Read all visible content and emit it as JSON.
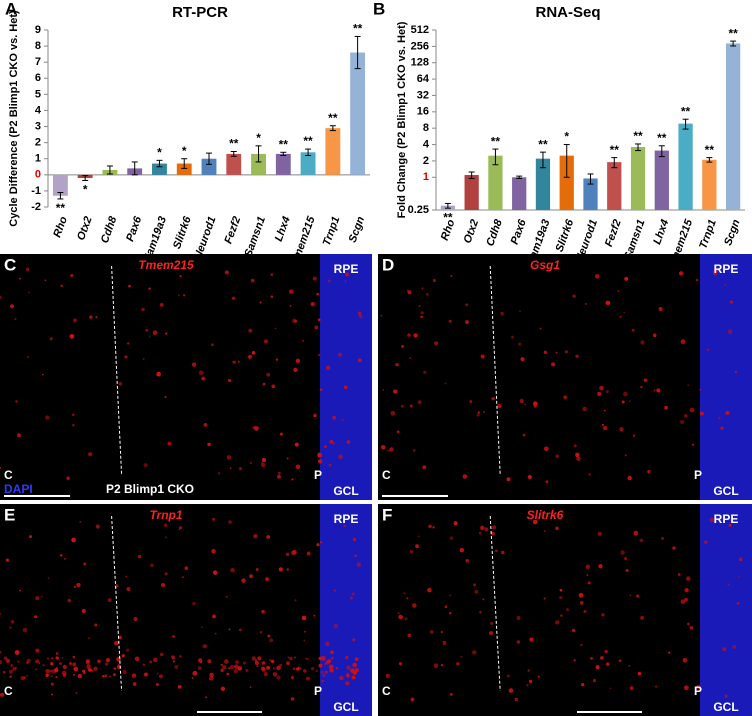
{
  "chart_data": [
    {
      "type": "bar",
      "panel": "A",
      "title": "RT-PCR",
      "ylabel": "Cycle Difference (P2 Blimp1 CKO vs. Het)",
      "categories": [
        "Rho",
        "Otx2",
        "Cdh8",
        "Pax6",
        "Fam19a3",
        "Slitrk6",
        "Neurod1",
        "Fezf2",
        "Samsn1",
        "Lhx4",
        "Tmem215",
        "Trnp1",
        "Scgn"
      ],
      "values": [
        -1.3,
        -0.2,
        0.3,
        0.4,
        0.7,
        0.7,
        1.0,
        1.3,
        1.3,
        1.3,
        1.4,
        2.9,
        7.6
      ],
      "errors": [
        0.2,
        0.15,
        0.25,
        0.4,
        0.2,
        0.3,
        0.35,
        0.15,
        0.5,
        0.1,
        0.2,
        0.15,
        1.0
      ],
      "annotations": [
        "**",
        "*",
        null,
        null,
        "*",
        "*",
        null,
        "**",
        "*",
        "**",
        "**",
        "**",
        "**"
      ],
      "colors": [
        "#b3a2c7",
        "#b0413e",
        "#9bbb59",
        "#8064a2",
        "#31859c",
        "#e46c0a",
        "#4f81bd",
        "#c0504d",
        "#9bbb59",
        "#8064a2",
        "#4bacc6",
        "#f79646",
        "#95b3d7"
      ],
      "ylim": [
        -2,
        9
      ],
      "yticks": [
        -2,
        -1,
        0,
        1,
        2,
        3,
        4,
        5,
        6,
        7,
        8,
        9
      ],
      "log_scale": false,
      "baseline_tick_color": "#e00000"
    },
    {
      "type": "bar",
      "panel": "B",
      "title": "RNA-Seq",
      "ylabel": "Fold Change (P2 Blimp1 CKO vs. Het)",
      "categories": [
        "Rho",
        "Otx2",
        "Cdh8",
        "Pax6",
        "Fam19a3",
        "Slitrk6",
        "Neurod1",
        "Fezf2",
        "Samsn1",
        "Lhx4",
        "Tmem215",
        "Trnp1",
        "Scgn"
      ],
      "values": [
        0.3,
        1.1,
        2.5,
        1.0,
        2.2,
        2.5,
        0.95,
        1.9,
        3.6,
        3.1,
        9.7,
        2.1,
        290
      ],
      "errors": [
        0.03,
        0.15,
        0.8,
        0.05,
        0.7,
        1.5,
        0.2,
        0.4,
        0.5,
        0.7,
        2,
        0.2,
        30
      ],
      "annotations": [
        "**",
        null,
        "**",
        null,
        "**",
        "*",
        null,
        "**",
        "**",
        "**",
        "**",
        "**",
        "**"
      ],
      "colors": [
        "#b3a2c7",
        "#b0413e",
        "#9bbb59",
        "#8064a2",
        "#31859c",
        "#e46c0a",
        "#4f81bd",
        "#c0504d",
        "#9bbb59",
        "#8064a2",
        "#4bacc6",
        "#f79646",
        "#95b3d7"
      ],
      "ylim": [
        0.25,
        512
      ],
      "yticks": [
        0.25,
        1,
        2,
        4,
        8,
        16,
        32,
        64,
        128,
        256,
        512
      ],
      "log_scale": true,
      "baseline_tick_color": "#e00000"
    }
  ],
  "image_panels": [
    {
      "letter": "C",
      "gene": "Tmem215",
      "top": "RPE",
      "bottom": "GCL",
      "left": "C",
      "right": "P",
      "stain": "DAPI",
      "condition": "P2 Blimp1 CKO"
    },
    {
      "letter": "D",
      "gene": "Gsg1",
      "top": "RPE",
      "bottom": "GCL",
      "left": "C",
      "right": "P"
    },
    {
      "letter": "E",
      "gene": "Trnp1",
      "top": "RPE",
      "bottom": "GCL",
      "left": "C",
      "right": "P"
    },
    {
      "letter": "F",
      "gene": "Slitrk6",
      "top": "RPE",
      "bottom": "GCL",
      "left": "C",
      "right": "P"
    }
  ]
}
